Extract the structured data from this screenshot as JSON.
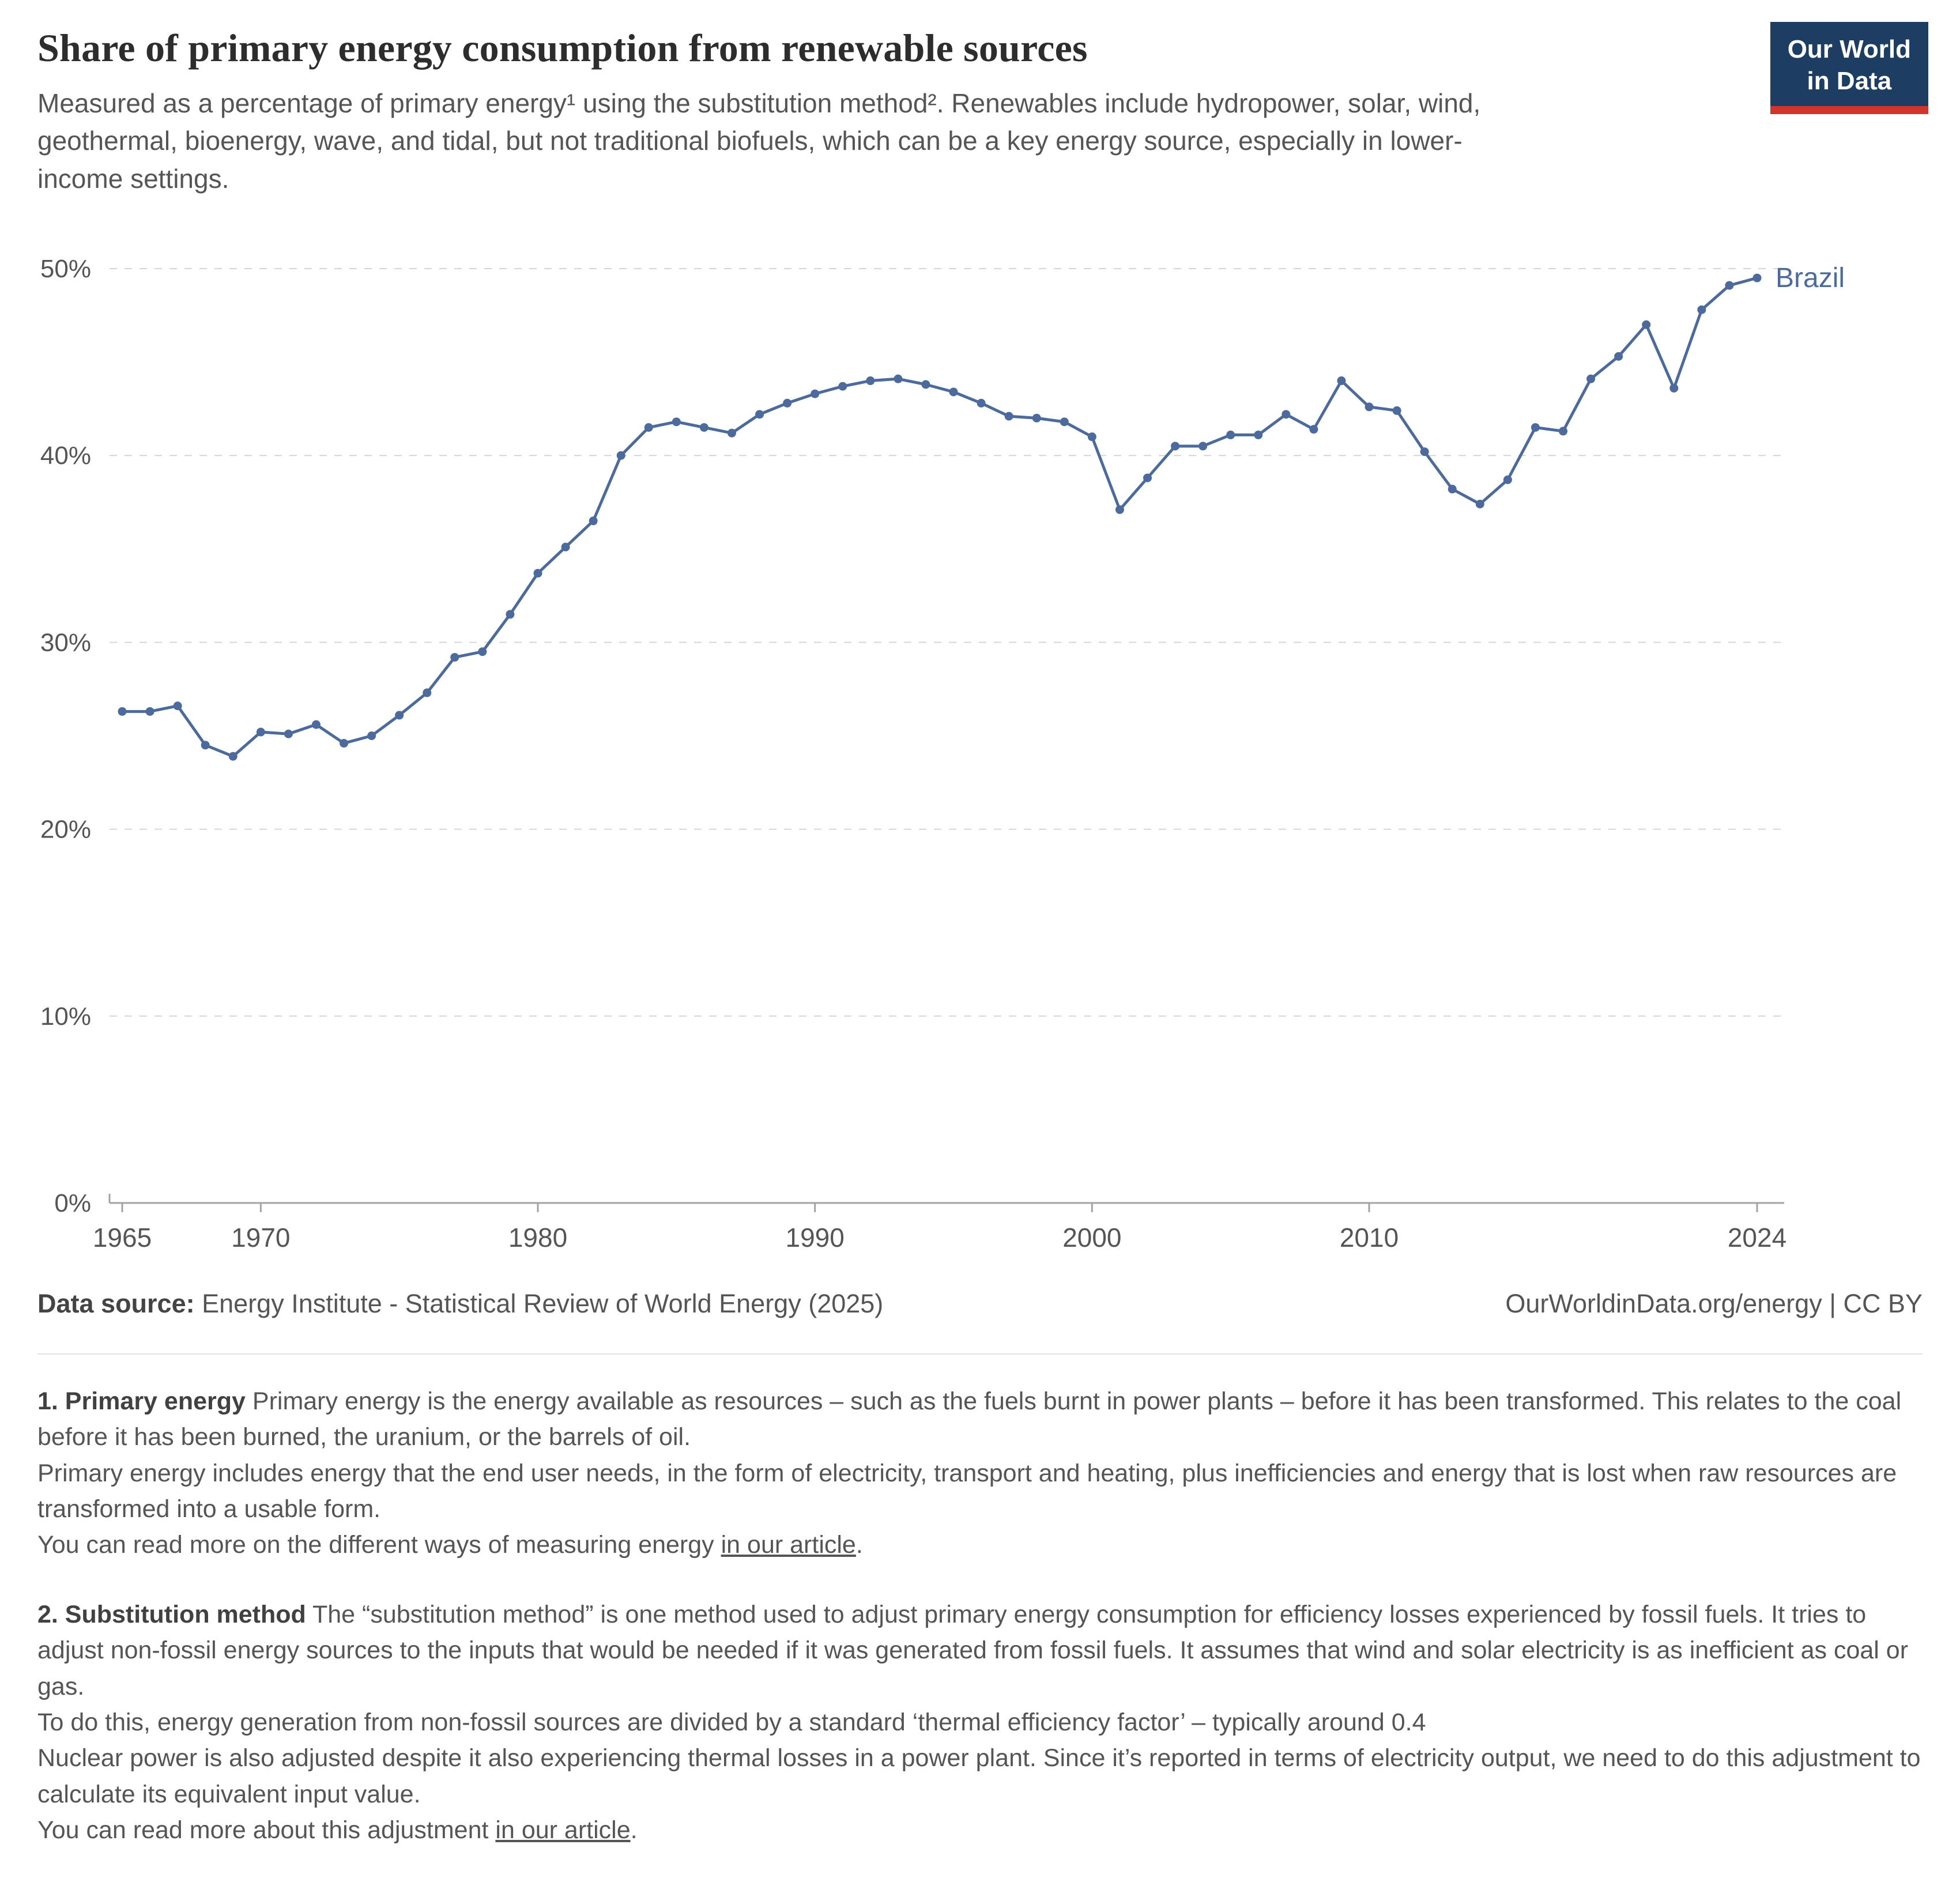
{
  "logo": {
    "line1": "Our World",
    "line2": "in Data",
    "bg_color": "#1d3d63",
    "accent_color": "#d0342c"
  },
  "header": {
    "title": "Share of primary energy consumption from renewable sources",
    "subtitle": "Measured as a percentage of primary energy¹ using the substitution method². Renewables include hydropower, solar, wind, geothermal, bioenergy, wave, and tidal, but not traditional biofuels, which can be a key energy source, especially in lower-income settings."
  },
  "chart_data": {
    "type": "line",
    "title": "Share of primary energy consumption from renewable sources",
    "xlabel": "",
    "ylabel": "",
    "xlim": [
      1965,
      2024
    ],
    "ylim": [
      0,
      50
    ],
    "grid": "horizontal-dashed",
    "grid_color": "#d6d6d6",
    "axis_color": "#a3a3a3",
    "tick_color": "#555555",
    "x_ticks": [
      {
        "v": 1965,
        "label": "1965"
      },
      {
        "v": 1970,
        "label": "1970"
      },
      {
        "v": 1980,
        "label": "1980"
      },
      {
        "v": 1990,
        "label": "1990"
      },
      {
        "v": 2000,
        "label": "2000"
      },
      {
        "v": 2010,
        "label": "2010"
      },
      {
        "v": 2024,
        "label": "2024"
      }
    ],
    "y_ticks": [
      {
        "v": 0,
        "label": "0%"
      },
      {
        "v": 10,
        "label": "10%"
      },
      {
        "v": 20,
        "label": "20%"
      },
      {
        "v": 30,
        "label": "30%"
      },
      {
        "v": 40,
        "label": "40%"
      },
      {
        "v": 50,
        "label": "50%"
      }
    ],
    "legend_position": "end-of-line-label",
    "series": [
      {
        "name": "Brazil",
        "color": "#4c6a9c",
        "years": [
          1965,
          1966,
          1967,
          1968,
          1969,
          1970,
          1971,
          1972,
          1973,
          1974,
          1975,
          1976,
          1977,
          1978,
          1979,
          1980,
          1981,
          1982,
          1983,
          1984,
          1985,
          1986,
          1987,
          1988,
          1989,
          1990,
          1991,
          1992,
          1993,
          1994,
          1995,
          1996,
          1997,
          1998,
          1999,
          2000,
          2001,
          2002,
          2003,
          2004,
          2005,
          2006,
          2007,
          2008,
          2009,
          2010,
          2011,
          2012,
          2013,
          2014,
          2015,
          2016,
          2017,
          2018,
          2019,
          2020,
          2021,
          2022,
          2023,
          2024
        ],
        "values": [
          26.3,
          26.3,
          26.6,
          24.5,
          23.9,
          25.2,
          25.1,
          25.6,
          24.6,
          25.0,
          26.1,
          27.3,
          29.2,
          29.5,
          31.5,
          33.7,
          35.1,
          36.5,
          40.0,
          41.5,
          41.8,
          41.5,
          41.2,
          42.2,
          42.8,
          43.3,
          43.7,
          44.0,
          44.1,
          43.8,
          43.4,
          42.8,
          42.1,
          42.0,
          41.8,
          41.0,
          37.1,
          38.8,
          40.5,
          40.5,
          41.1,
          41.1,
          42.2,
          41.4,
          44.0,
          42.6,
          42.4,
          40.2,
          38.2,
          37.4,
          38.7,
          41.5,
          41.3,
          44.1,
          45.3,
          47.0,
          43.6,
          47.8,
          49.1,
          49.5
        ]
      }
    ]
  },
  "footer": {
    "source_label": "Data source:",
    "source_value": "Energy Institute - Statistical Review of World Energy (2025)",
    "attribution": "OurWorldinData.org/energy | CC BY"
  },
  "notes": [
    {
      "label": "1. Primary energy",
      "text1": "Primary energy is the energy available as resources – such as the fuels burnt in power plants – before it has been transformed. This relates to the coal before it has been burned, the uranium, or the barrels of oil.",
      "text2": "Primary energy includes energy that the end user needs, in the form of electricity, transport and heating, plus inefficiencies and energy that is lost when raw resources are transformed into a usable form.",
      "text3": "You can read more on the different ways of measuring energy",
      "link_label": "in our article",
      "after_link": "."
    },
    {
      "label": "2. Substitution method",
      "text1": "The “substitution method” is one method used to adjust primary energy consumption for efficiency losses experienced by fossil fuels. It tries to adjust non-fossil energy sources to the inputs that would be needed if it was generated from fossil fuels. It assumes that wind and solar electricity is as inefficient as coal or gas.",
      "text2": "To do this, energy generation from non-fossil sources are divided by a standard ‘thermal efficiency factor’ – typically around 0.4",
      "text3": "Nuclear power is also adjusted despite it also experiencing thermal losses in a power plant. Since it’s reported in terms of electricity output, we need to do this adjustment to calculate its equivalent input value.",
      "text4": "You can read more about this adjustment",
      "link_label": "in our article",
      "after_link": "."
    }
  ]
}
